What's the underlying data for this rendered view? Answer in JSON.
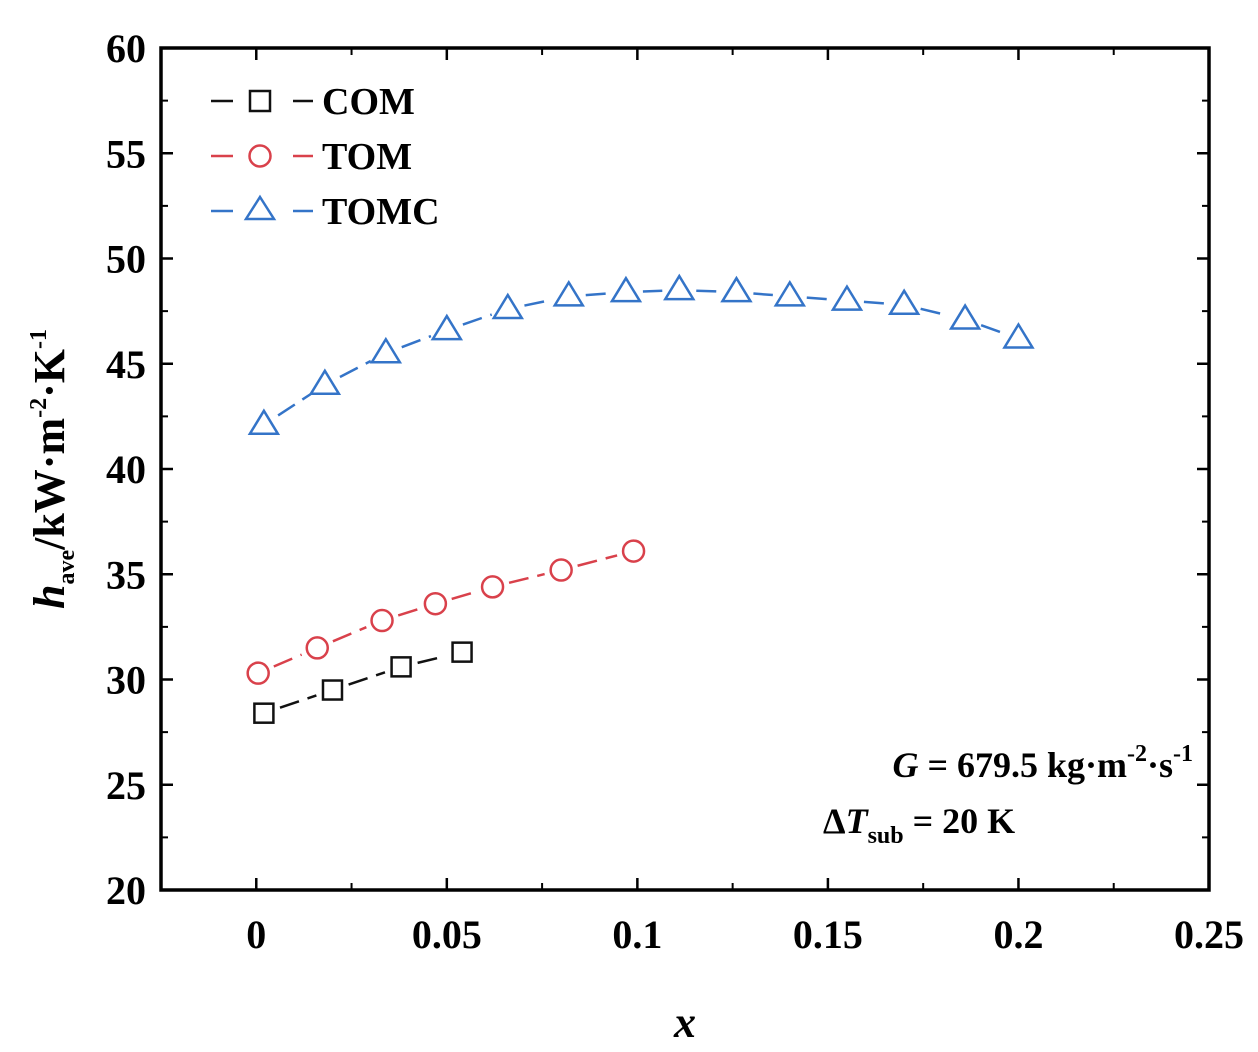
{
  "chart_data": {
    "type": "scatter",
    "title": "",
    "xlabel": "x",
    "ylabel": {
      "main": "h",
      "sub": "ave",
      "unit_a": "/kW·m",
      "exp_a": "-2",
      "unit_b": "·K",
      "exp_b": "-1"
    },
    "xlim": [
      -0.025,
      0.25
    ],
    "ylim": [
      20,
      60
    ],
    "xticks": [
      0,
      0.05,
      0.1,
      0.15,
      0.2,
      0.25
    ],
    "xtick_labels": [
      "0",
      "0.05",
      "0.1",
      "0.15",
      "0.2",
      "0.25"
    ],
    "yticks": [
      20,
      25,
      30,
      35,
      40,
      45,
      50,
      55,
      60
    ],
    "ytick_labels": [
      "20",
      "25",
      "30",
      "35",
      "40",
      "45",
      "50",
      "55",
      "60"
    ],
    "legend_position": "top-left",
    "series": [
      {
        "name": "COM",
        "marker": "square",
        "color": "#111111",
        "x": [
          0.002,
          0.02,
          0.038,
          0.054
        ],
        "y": [
          28.4,
          29.5,
          30.6,
          31.3
        ]
      },
      {
        "name": "TOM",
        "marker": "circle",
        "color": "#d9414b",
        "x": [
          0.0005,
          0.016,
          0.033,
          0.047,
          0.062,
          0.08,
          0.099
        ],
        "y": [
          30.3,
          31.5,
          32.8,
          33.6,
          34.4,
          35.2,
          36.1
        ]
      },
      {
        "name": "TOMC",
        "marker": "triangle",
        "color": "#3474c8",
        "x": [
          0.002,
          0.018,
          0.034,
          0.05,
          0.066,
          0.082,
          0.097,
          0.111,
          0.126,
          0.14,
          0.155,
          0.17,
          0.186,
          0.2
        ],
        "y": [
          42.1,
          44.0,
          45.5,
          46.6,
          47.6,
          48.2,
          48.4,
          48.5,
          48.4,
          48.2,
          48.0,
          47.8,
          47.1,
          46.2
        ]
      }
    ],
    "annotations": [
      {
        "var": "G",
        "text": " = 679.5 kg·m",
        "exp1": "-2",
        "mid": "·s",
        "exp2": "-1"
      },
      {
        "prefix": "Δ",
        "var": "T",
        "sub": "sub",
        "text": " = 20 K"
      }
    ]
  }
}
